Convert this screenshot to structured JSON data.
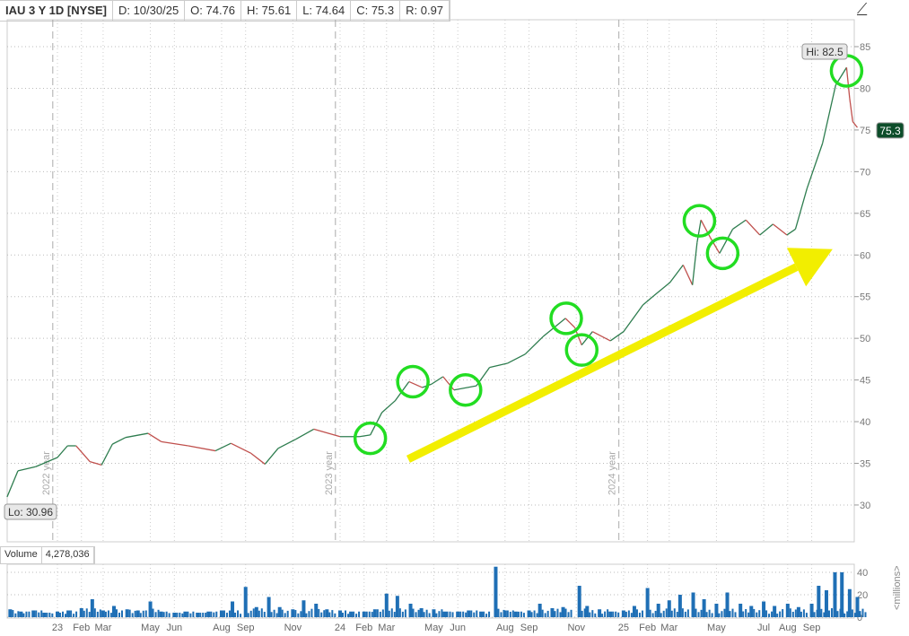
{
  "header": {
    "symbol": "IAU 3 Y 1D [NYSE]",
    "date": "D: 10/30/25",
    "open": "O: 74.76",
    "high": "H: 75.61",
    "low": "L: 74.64",
    "close": "C: 75.3",
    "range": "R: 0.97"
  },
  "volume_header": {
    "label": "Volume",
    "value": "4,278,036"
  },
  "volume_unit": "<millions>",
  "icons": {
    "toolbar": "indicator-icon"
  },
  "colors": {
    "up": "#2e7d4f",
    "down": "#c0504d",
    "volume": "#1f6fb5",
    "circle": "#22dd22",
    "arrow": "#f2ee00",
    "last_badge": "#0d4d2a"
  },
  "chart_data": [
    {
      "type": "line",
      "title": "IAU 3 Y 1D",
      "ylim": [
        25,
        87
      ],
      "yticks": [
        30,
        35,
        40,
        45,
        50,
        55,
        60,
        65,
        70,
        75,
        80,
        85
      ],
      "grid": true,
      "xticks": [
        {
          "date": "2023-01-01",
          "label": "23"
        },
        {
          "date": "2023-02-01",
          "label": "Feb"
        },
        {
          "date": "2023-03-01",
          "label": "Mar"
        },
        {
          "date": "2023-05-01",
          "label": "May"
        },
        {
          "date": "2023-06-01",
          "label": "Jun"
        },
        {
          "date": "2023-08-01",
          "label": "Aug"
        },
        {
          "date": "2023-09-01",
          "label": "Sep"
        },
        {
          "date": "2023-11-01",
          "label": "Nov"
        },
        {
          "date": "2024-01-01",
          "label": "24"
        },
        {
          "date": "2024-02-01",
          "label": "Feb"
        },
        {
          "date": "2024-03-01",
          "label": "Mar"
        },
        {
          "date": "2024-05-01",
          "label": "May"
        },
        {
          "date": "2024-06-01",
          "label": "Jun"
        },
        {
          "date": "2024-08-01",
          "label": "Aug"
        },
        {
          "date": "2024-09-01",
          "label": "Sep"
        },
        {
          "date": "2024-11-01",
          "label": "Nov"
        },
        {
          "date": "2025-01-01",
          "label": "25"
        },
        {
          "date": "2025-02-01",
          "label": "Feb"
        },
        {
          "date": "2025-03-01",
          "label": "Mar"
        },
        {
          "date": "2025-05-01",
          "label": "May"
        },
        {
          "date": "2025-07-01",
          "label": "Jul"
        },
        {
          "date": "2025-08-01",
          "label": "Aug"
        },
        {
          "date": "2025-09-01",
          "label": "Sep"
        }
      ],
      "year_markers": [
        {
          "date": "2022-12-26",
          "label": "2022 year"
        },
        {
          "date": "2023-12-26",
          "label": "2023 year"
        },
        {
          "date": "2024-12-26",
          "label": "2024 year"
        }
      ],
      "series": [
        {
          "points": [
            [
              "2022-10-28",
              30.96
            ],
            [
              "2022-11-11",
              34.1
            ],
            [
              "2022-12-04",
              34.6
            ],
            [
              "2023-01-01",
              35.7
            ],
            [
              "2023-01-14",
              37.1
            ],
            [
              "2023-01-25",
              37.1
            ],
            [
              "2023-02-12",
              35.2
            ],
            [
              "2023-02-27",
              34.8
            ],
            [
              "2023-03-13",
              37.3
            ],
            [
              "2023-03-30",
              38.1
            ],
            [
              "2023-04-28",
              38.6
            ],
            [
              "2023-05-15",
              37.6
            ],
            [
              "2023-06-19",
              37.1
            ],
            [
              "2023-07-24",
              36.5
            ],
            [
              "2023-08-13",
              37.4
            ],
            [
              "2023-09-08",
              36.2
            ],
            [
              "2023-09-26",
              34.9
            ],
            [
              "2023-10-13",
              36.8
            ],
            [
              "2023-11-05",
              37.9
            ],
            [
              "2023-11-28",
              39.1
            ],
            [
              "2024-01-01",
              38.2
            ],
            [
              "2024-01-26",
              38.2
            ],
            [
              "2024-02-09",
              38.4
            ],
            [
              "2024-02-24",
              41.1
            ],
            [
              "2024-03-12",
              42.5
            ],
            [
              "2024-03-30",
              44.8
            ],
            [
              "2024-04-16",
              44.1
            ],
            [
              "2024-04-28",
              44.5
            ],
            [
              "2024-05-13",
              45.4
            ],
            [
              "2024-05-27",
              43.8
            ],
            [
              "2024-06-25",
              44.3
            ],
            [
              "2024-07-12",
              46.5
            ],
            [
              "2024-08-04",
              47.0
            ],
            [
              "2024-08-27",
              48.1
            ],
            [
              "2024-09-19",
              50.2
            ],
            [
              "2024-10-18",
              52.4
            ],
            [
              "2024-10-30",
              51.3
            ],
            [
              "2024-11-08",
              49.2
            ],
            [
              "2024-11-22",
              50.8
            ],
            [
              "2024-12-15",
              49.7
            ],
            [
              "2025-01-01",
              50.8
            ],
            [
              "2025-01-26",
              54.0
            ],
            [
              "2025-02-09",
              55.1
            ],
            [
              "2025-03-02",
              56.7
            ],
            [
              "2025-03-19",
              58.8
            ],
            [
              "2025-03-31",
              56.4
            ],
            [
              "2025-04-06",
              61.5
            ],
            [
              "2025-04-11",
              64.2
            ],
            [
              "2025-04-23",
              62.1
            ],
            [
              "2025-05-05",
              60.2
            ],
            [
              "2025-05-22",
              63.1
            ],
            [
              "2025-06-08",
              64.2
            ],
            [
              "2025-06-26",
              62.4
            ],
            [
              "2025-07-13",
              63.7
            ],
            [
              "2025-07-31",
              62.4
            ],
            [
              "2025-08-11",
              63.1
            ],
            [
              "2025-08-26",
              68.0
            ],
            [
              "2025-09-15",
              73.4
            ],
            [
              "2025-10-02",
              80.4
            ],
            [
              "2025-10-16",
              82.5
            ],
            [
              "2025-10-20",
              78.8
            ],
            [
              "2025-10-24",
              76.0
            ],
            [
              "2025-10-30",
              75.3
            ]
          ]
        }
      ],
      "hi_label": "Hi: 82.5",
      "lo_label": "Lo: 30.96",
      "last_label": "75.3",
      "annotations": {
        "circles": [
          [
            "2024-02-09",
            38.0
          ],
          [
            "2024-04-04",
            44.8
          ],
          [
            "2024-06-11",
            43.8
          ],
          [
            "2024-10-19",
            52.4
          ],
          [
            "2024-11-08",
            48.6
          ],
          [
            "2025-04-09",
            64.1
          ],
          [
            "2025-05-09",
            60.2
          ],
          [
            "2025-10-16",
            82.1
          ]
        ],
        "arrow": {
          "from": [
            "2024-03-29",
            35.5
          ],
          "to": [
            "2025-09-28",
            60.7
          ]
        }
      }
    },
    {
      "type": "bar",
      "name": "Volume",
      "ylabel": "<millions>",
      "yticks": [
        0,
        20,
        40
      ],
      "ylim": [
        0,
        46
      ],
      "values": [
        [
          "2022-11-01",
          7
        ],
        [
          "2022-11-15",
          5
        ],
        [
          "2022-12-01",
          6
        ],
        [
          "2022-12-15",
          4
        ],
        [
          "2023-01-01",
          5
        ],
        [
          "2023-01-15",
          6
        ],
        [
          "2023-02-01",
          8
        ],
        [
          "2023-02-15",
          16
        ],
        [
          "2023-03-01",
          6
        ],
        [
          "2023-03-15",
          10
        ],
        [
          "2023-04-01",
          7
        ],
        [
          "2023-04-15",
          6
        ],
        [
          "2023-05-01",
          14
        ],
        [
          "2023-05-15",
          5
        ],
        [
          "2023-06-01",
          4
        ],
        [
          "2023-06-15",
          5
        ],
        [
          "2023-07-01",
          4
        ],
        [
          "2023-07-15",
          5
        ],
        [
          "2023-08-01",
          6
        ],
        [
          "2023-08-15",
          14
        ],
        [
          "2023-09-01",
          27
        ],
        [
          "2023-09-15",
          9
        ],
        [
          "2023-10-01",
          18
        ],
        [
          "2023-10-15",
          9
        ],
        [
          "2023-11-01",
          7
        ],
        [
          "2023-11-15",
          15
        ],
        [
          "2023-12-01",
          12
        ],
        [
          "2023-12-15",
          7
        ],
        [
          "2024-01-01",
          6
        ],
        [
          "2024-01-15",
          5
        ],
        [
          "2024-02-01",
          5
        ],
        [
          "2024-02-15",
          7
        ],
        [
          "2024-03-01",
          21
        ],
        [
          "2024-03-15",
          19
        ],
        [
          "2024-04-01",
          12
        ],
        [
          "2024-04-15",
          8
        ],
        [
          "2024-05-01",
          7
        ],
        [
          "2024-05-15",
          5
        ],
        [
          "2024-06-01",
          5
        ],
        [
          "2024-06-15",
          6
        ],
        [
          "2024-07-01",
          5
        ],
        [
          "2024-07-20",
          45
        ],
        [
          "2024-08-01",
          6
        ],
        [
          "2024-08-15",
          5
        ],
        [
          "2024-09-01",
          6
        ],
        [
          "2024-09-15",
          12
        ],
        [
          "2024-10-01",
          8
        ],
        [
          "2024-10-15",
          9
        ],
        [
          "2024-11-05",
          28
        ],
        [
          "2024-11-15",
          10
        ],
        [
          "2024-12-01",
          7
        ],
        [
          "2024-12-15",
          5
        ],
        [
          "2025-01-01",
          6
        ],
        [
          "2025-01-15",
          10
        ],
        [
          "2025-02-01",
          26
        ],
        [
          "2025-02-15",
          12
        ],
        [
          "2025-03-01",
          15
        ],
        [
          "2025-03-15",
          20
        ],
        [
          "2025-04-01",
          22
        ],
        [
          "2025-04-15",
          16
        ],
        [
          "2025-05-01",
          12
        ],
        [
          "2025-05-15",
          22
        ],
        [
          "2025-06-01",
          12
        ],
        [
          "2025-06-15",
          10
        ],
        [
          "2025-07-01",
          14
        ],
        [
          "2025-07-15",
          10
        ],
        [
          "2025-08-01",
          12
        ],
        [
          "2025-08-15",
          9
        ],
        [
          "2025-09-01",
          12
        ],
        [
          "2025-09-10",
          28
        ],
        [
          "2025-09-20",
          24
        ],
        [
          "2025-10-01",
          40
        ],
        [
          "2025-10-10",
          40
        ],
        [
          "2025-10-20",
          25
        ],
        [
          "2025-10-30",
          18
        ]
      ]
    }
  ]
}
